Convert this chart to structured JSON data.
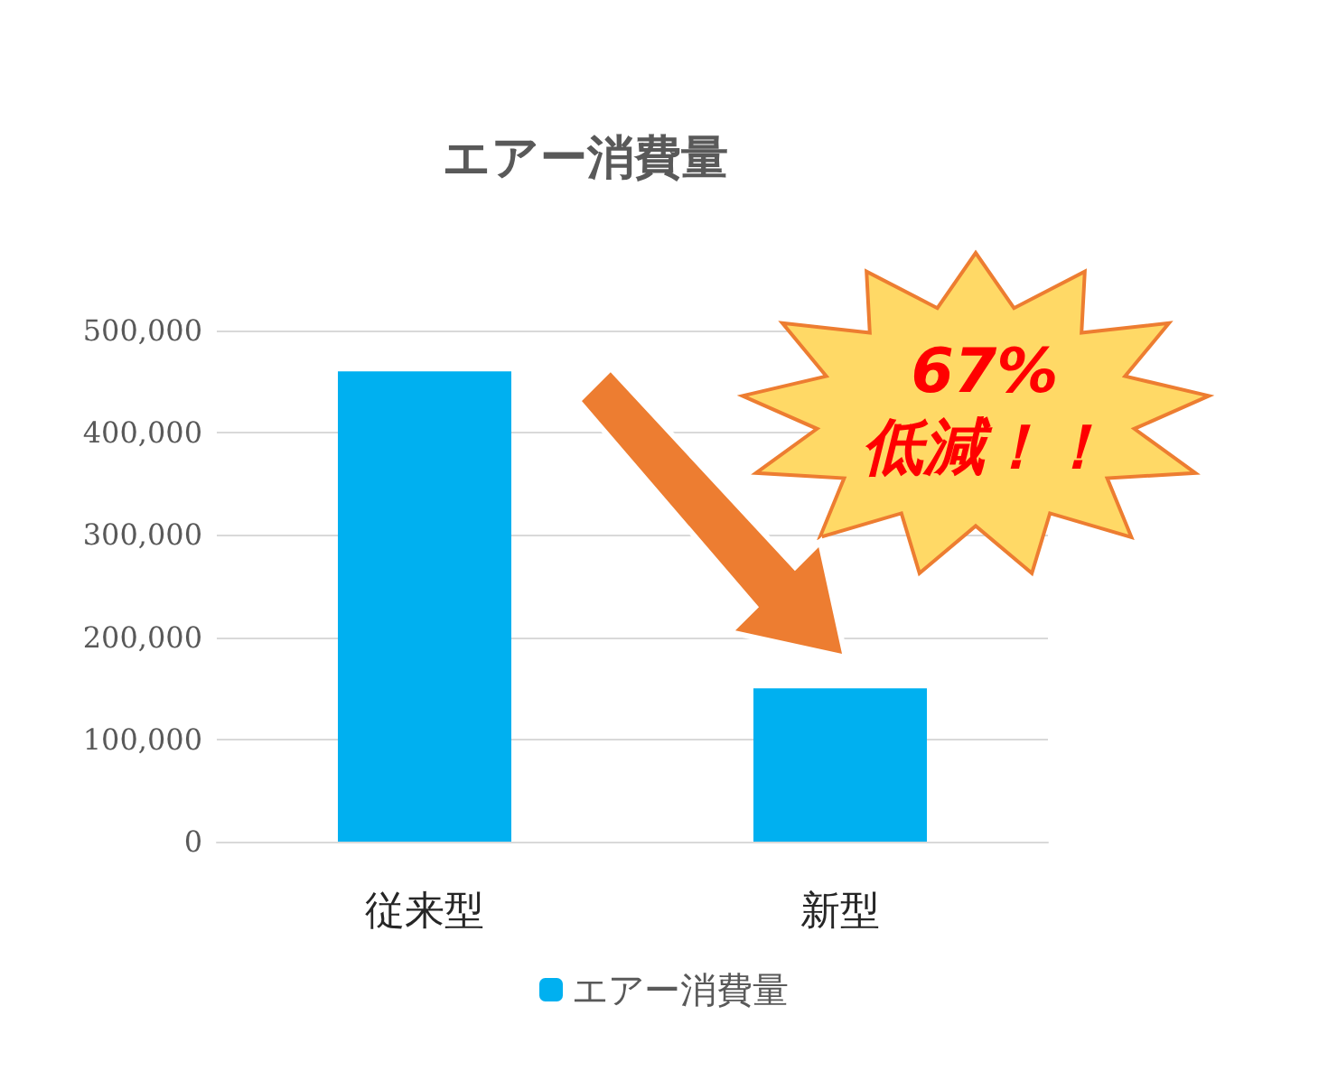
{
  "chart_data": {
    "type": "bar",
    "title": "エアー消費量",
    "categories": [
      "従来型",
      "新型"
    ],
    "series": [
      {
        "name": "エアー消費量",
        "color": "#00b0f0",
        "values": [
          460000,
          150000
        ]
      }
    ],
    "ylim": [
      0,
      500000
    ],
    "yticks": [
      0,
      {
        "value": 100000,
        "label": "100,000"
      },
      {
        "value": 200000,
        "label": "200,000"
      },
      {
        "value": 300000,
        "label": "300,000"
      },
      {
        "value": 400000,
        "label": "400,000"
      },
      {
        "value": 500000,
        "label": "500,000"
      }
    ],
    "grid": "y",
    "legend": "bottom",
    "annotations": [
      "67%",
      "低減！！"
    ]
  }
}
